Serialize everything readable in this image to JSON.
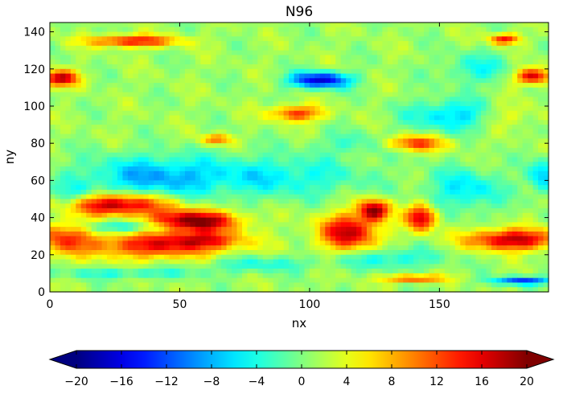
{
  "chart_data": {
    "type": "heatmap",
    "title": "N96",
    "xlabel": "nx",
    "ylabel": "ny",
    "xlim": [
      0,
      192
    ],
    "ylim": [
      0,
      145
    ],
    "x_ticks": [
      0,
      50,
      100,
      150
    ],
    "y_ticks": [
      0,
      20,
      40,
      60,
      80,
      100,
      120,
      140
    ],
    "colorbar": {
      "colormap": "jet",
      "range": [
        -20,
        20
      ],
      "extend": "both",
      "orientation": "horizontal",
      "ticks": [
        -20,
        -16,
        -12,
        -8,
        -4,
        0,
        4,
        8,
        12,
        16,
        20
      ],
      "tick_labels": [
        "−20",
        "−16",
        "−12",
        "−8",
        "−4",
        "0",
        "4",
        "8",
        "12",
        "16",
        "20"
      ]
    },
    "features": [
      {
        "x": 25,
        "y": 47,
        "sx": 14,
        "sy": 4,
        "value": 18
      },
      {
        "x": 55,
        "y": 38,
        "sx": 12,
        "sy": 4,
        "value": 20
      },
      {
        "x": 40,
        "y": 25,
        "sx": 20,
        "sy": 5,
        "value": 13
      },
      {
        "x": 5,
        "y": 30,
        "sx": 8,
        "sy": 6,
        "value": 10
      },
      {
        "x": 60,
        "y": 28,
        "sx": 10,
        "sy": 3,
        "value": 9
      },
      {
        "x": 115,
        "y": 32,
        "sx": 8,
        "sy": 7,
        "value": 16
      },
      {
        "x": 125,
        "y": 44,
        "sx": 4,
        "sy": 4,
        "value": 18
      },
      {
        "x": 143,
        "y": 40,
        "sx": 4,
        "sy": 5,
        "value": 16
      },
      {
        "x": 178,
        "y": 28,
        "sx": 12,
        "sy": 4,
        "value": 17
      },
      {
        "x": 140,
        "y": 80,
        "sx": 9,
        "sy": 3,
        "value": 12
      },
      {
        "x": 95,
        "y": 96,
        "sx": 7,
        "sy": 3,
        "value": 12
      },
      {
        "x": 32,
        "y": 135,
        "sx": 12,
        "sy": 2.2,
        "value": 14
      },
      {
        "x": 175,
        "y": 136,
        "sx": 4,
        "sy": 2,
        "value": 14
      },
      {
        "x": 4,
        "y": 115,
        "sx": 5,
        "sy": 3,
        "value": 16
      },
      {
        "x": 186,
        "y": 116,
        "sx": 5,
        "sy": 3,
        "value": 16
      },
      {
        "x": 64,
        "y": 82,
        "sx": 4,
        "sy": 2,
        "value": 10
      },
      {
        "x": 140,
        "y": 7,
        "sx": 8,
        "sy": 1.5,
        "value": 12
      },
      {
        "x": 104,
        "y": 114,
        "sx": 8,
        "sy": 3,
        "value": -18
      },
      {
        "x": 30,
        "y": 35,
        "sx": 12,
        "sy": 2.5,
        "value": -8
      },
      {
        "x": 40,
        "y": 62,
        "sx": 20,
        "sy": 8,
        "value": -9
      },
      {
        "x": 90,
        "y": 62,
        "sx": 22,
        "sy": 8,
        "value": -6
      },
      {
        "x": 155,
        "y": 95,
        "sx": 12,
        "sy": 6,
        "value": -8
      },
      {
        "x": 160,
        "y": 55,
        "sx": 10,
        "sy": 8,
        "value": -7
      },
      {
        "x": 182,
        "y": 6,
        "sx": 8,
        "sy": 1.5,
        "value": -14
      },
      {
        "x": 80,
        "y": 15,
        "sx": 15,
        "sy": 3,
        "value": -5
      },
      {
        "x": 130,
        "y": 18,
        "sx": 14,
        "sy": 4,
        "value": -6
      },
      {
        "x": 30,
        "y": 10,
        "sx": 20,
        "sy": 2,
        "value": -5
      },
      {
        "x": 120,
        "y": 80,
        "sx": 12,
        "sy": 4,
        "value": -4
      },
      {
        "x": 165,
        "y": 120,
        "sx": 10,
        "sy": 6,
        "value": -5
      },
      {
        "x": 190,
        "y": 62,
        "sx": 4,
        "sy": 6,
        "value": -9
      },
      {
        "x": 176,
        "y": 95,
        "sx": 8,
        "sy": 5,
        "value": 4
      },
      {
        "x": 8,
        "y": 50,
        "sx": 6,
        "sy": 5,
        "value": -6
      }
    ]
  }
}
